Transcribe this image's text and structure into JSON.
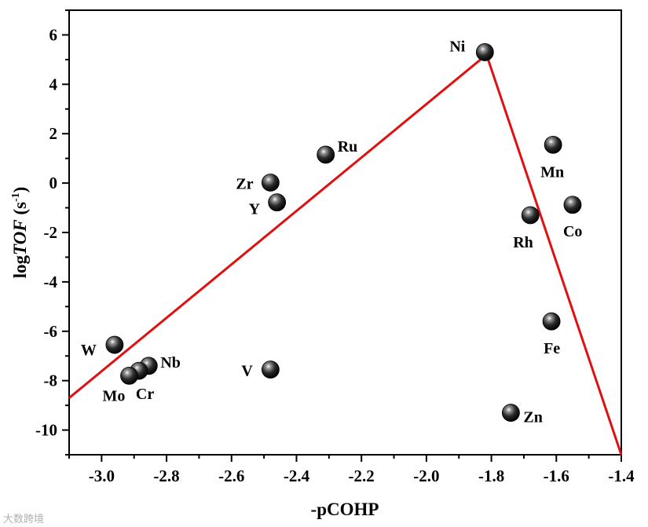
{
  "chart_data": {
    "type": "scatter",
    "xlabel": "-pCOHP",
    "ylabel": {
      "prefix": "log",
      "italic": "TOF",
      "unit_open": " (s",
      "unit_sup": "-1",
      "unit_close": ")"
    },
    "xlim": [
      -3.1,
      -1.4
    ],
    "ylim": [
      -11,
      7
    ],
    "xticks": [
      -3.0,
      -2.8,
      -2.6,
      -2.4,
      -2.2,
      -2.0,
      -1.8,
      -1.6,
      -1.4
    ],
    "xtick_labels": [
      "-3.0",
      "-2.8",
      "-2.6",
      "-2.4",
      "-2.2",
      "-2.0",
      "-1.8",
      "-1.6",
      "-1.4"
    ],
    "yticks": [
      -10,
      -8,
      -6,
      -4,
      -2,
      0,
      2,
      4,
      6
    ],
    "ytick_labels": [
      "-10",
      "-8",
      "-6",
      "-4",
      "-2",
      "0",
      "2",
      "4",
      "6"
    ],
    "grid": false,
    "points": [
      {
        "label": "Ni",
        "x": -1.82,
        "y": 5.3
      },
      {
        "label": "Ru",
        "x": -2.31,
        "y": 1.15
      },
      {
        "label": "Zr",
        "x": -2.48,
        "y": 0.02
      },
      {
        "label": "Y",
        "x": -2.46,
        "y": -0.78
      },
      {
        "label": "Mn",
        "x": -1.61,
        "y": 1.55
      },
      {
        "label": "Co",
        "x": -1.55,
        "y": -0.88
      },
      {
        "label": "Rh",
        "x": -1.68,
        "y": -1.3
      },
      {
        "label": "Fe",
        "x": -1.615,
        "y": -5.6
      },
      {
        "label": "W",
        "x": -2.96,
        "y": -6.55
      },
      {
        "label": "Nb",
        "x": -2.855,
        "y": -7.4
      },
      {
        "label": "Cr",
        "x": -2.885,
        "y": -7.6
      },
      {
        "label": "Mo",
        "x": -2.915,
        "y": -7.8
      },
      {
        "label": "V",
        "x": -2.48,
        "y": -7.55
      },
      {
        "label": "Zn",
        "x": -1.74,
        "y": -9.3
      }
    ],
    "volcano_line": [
      {
        "x": -3.1,
        "y": -8.7
      },
      {
        "x": -1.815,
        "y": 5.2
      },
      {
        "x": -1.4,
        "y": -11
      }
    ],
    "colors": {
      "line": "#e01010",
      "marker": "#111111",
      "axis": "#000000"
    }
  },
  "watermark": "大数跨境"
}
